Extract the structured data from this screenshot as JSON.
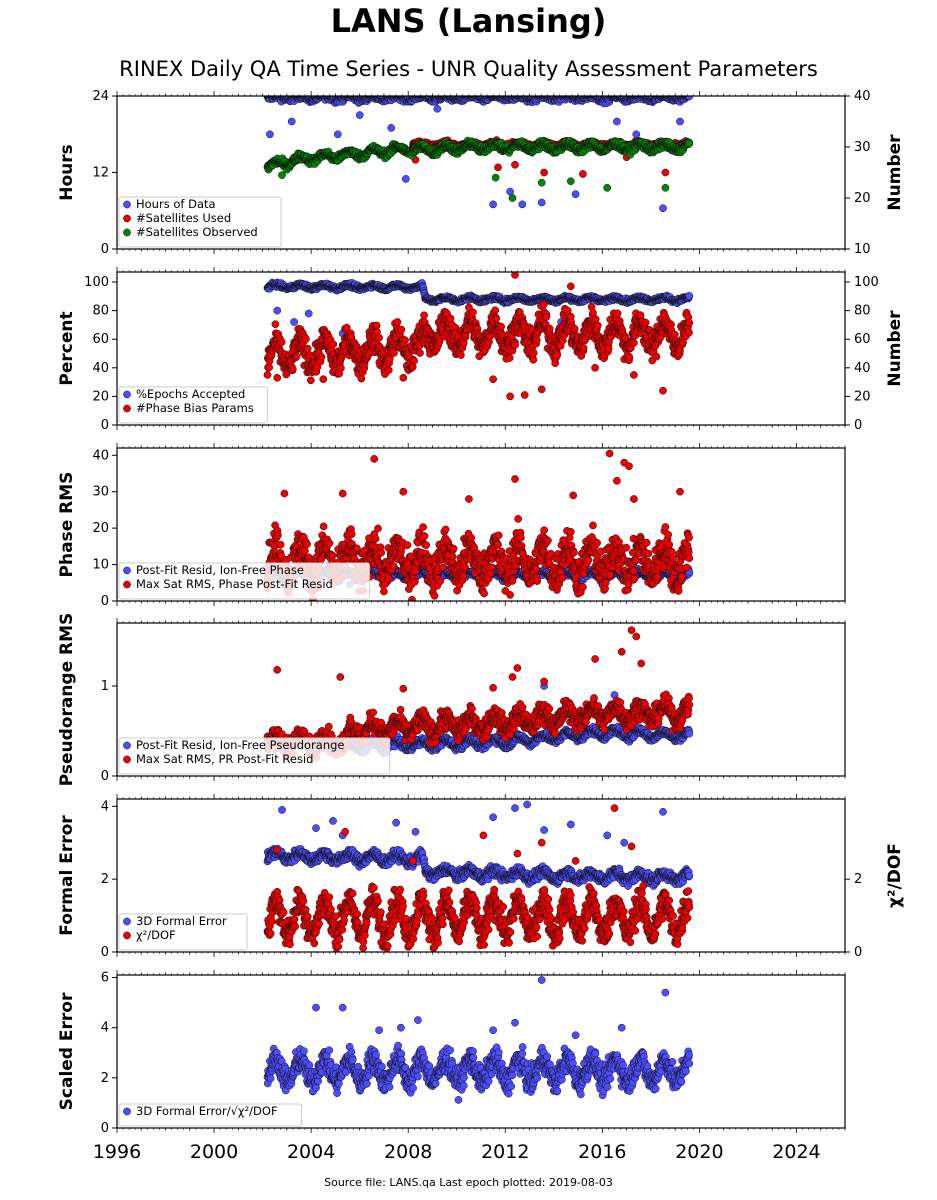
{
  "title": "LANS (Lansing)",
  "subtitle": "RINEX Daily QA Time Series - UNR Quality Assessment Parameters",
  "footer": "Source file: LANS.qa Last epoch plotted: 2019-08-03",
  "colors": {
    "blue": "#4d4dff",
    "red": "#ee0000",
    "green": "#008800"
  },
  "chart_data": [
    {
      "type": "scatter",
      "ylabel": "Hours",
      "ylabel_right": "Number",
      "ylim": [
        0,
        24
      ],
      "ylim_right": [
        10,
        40
      ],
      "yticks": [
        0,
        12,
        24
      ],
      "yticks_right": [
        10,
        20,
        30,
        40
      ],
      "legend": "lower-left",
      "series": [
        {
          "name": "Hours of Data",
          "color": "blue",
          "axis": "left",
          "base": 23.8,
          "amp": 0.3,
          "noise": 0.4,
          "start": 2002.2,
          "end": 2019.6,
          "outliers": [
            [
              2002.3,
              18
            ],
            [
              2003.2,
              20
            ],
            [
              2005.1,
              18
            ],
            [
              2006.0,
              21
            ],
            [
              2007.3,
              19
            ],
            [
              2007.9,
              11
            ],
            [
              2009.2,
              22
            ],
            [
              2011.5,
              7
            ],
            [
              2012.2,
              9
            ],
            [
              2012.7,
              7
            ],
            [
              2013.5,
              7.3
            ],
            [
              2014.9,
              8.6
            ],
            [
              2016.6,
              20
            ],
            [
              2017.4,
              18
            ],
            [
              2018.5,
              6.4
            ],
            [
              2019.2,
              20
            ]
          ]
        },
        {
          "name": "#Satellites Used",
          "color": "red",
          "axis": "right",
          "base": 30.5,
          "amp": 0.3,
          "noise": 0.3,
          "start": 2008.2,
          "end": 2019.6,
          "outliers": [
            [
              2008.3,
              27.5
            ],
            [
              2011.7,
              26
            ],
            [
              2012.4,
              26.5
            ],
            [
              2013.6,
              25
            ],
            [
              2015.2,
              24.7
            ],
            [
              2017.0,
              28
            ],
            [
              2018.6,
              25
            ]
          ]
        },
        {
          "name": "#Satellites Observed",
          "color": "green",
          "axis": "right",
          "base": 28.6,
          "amp": 0.6,
          "noise": 0.5,
          "start": 2002.2,
          "end": 2019.6,
          "trend": [
            [
              2002.2,
              26.2
            ],
            [
              2003.5,
              27.6
            ],
            [
              2005.5,
              28.5
            ],
            [
              2007.6,
              29.5
            ],
            [
              2009.0,
              29.5
            ],
            [
              2010.5,
              30
            ],
            [
              2019.6,
              30
            ]
          ],
          "outliers": [
            [
              2002.8,
              24.5
            ],
            [
              2011.6,
              24
            ],
            [
              2012.3,
              20
            ],
            [
              2013.5,
              23
            ],
            [
              2014.7,
              23.3
            ],
            [
              2016.2,
              22
            ],
            [
              2018.6,
              22
            ]
          ]
        }
      ]
    },
    {
      "type": "scatter",
      "ylabel": "Percent",
      "ylabel_right": "Number",
      "ylim": [
        0,
        107
      ],
      "ylim_right": [
        0,
        107
      ],
      "yticks": [
        0,
        20,
        40,
        60,
        80,
        100
      ],
      "yticks_right": [
        0,
        20,
        40,
        60,
        80,
        100
      ],
      "legend": "lower-left",
      "series": [
        {
          "name": "%Epochs Accepted",
          "color": "blue",
          "axis": "left",
          "base": 96.5,
          "amp": 1.2,
          "noise": 1.0,
          "start": 2002.2,
          "end": 2019.6,
          "trend": [
            [
              2002.2,
              97
            ],
            [
              2008.6,
              96.5
            ],
            [
              2008.7,
              88
            ],
            [
              2019.6,
              88
            ]
          ],
          "outliers": [
            [
              2002.6,
              80
            ],
            [
              2003.3,
              72
            ],
            [
              2003.9,
              78
            ],
            [
              2004.5,
              65
            ],
            [
              2005.3,
              64
            ],
            [
              2008.2,
              60
            ],
            [
              2012.4,
              58
            ],
            [
              2014.3,
              72
            ]
          ]
        },
        {
          "name": "#Phase Bias Params",
          "color": "red",
          "axis": "left",
          "base": 50,
          "amp": 9,
          "noise": 7,
          "start": 2002.2,
          "end": 2019.6,
          "trend": [
            [
              2002.2,
              48
            ],
            [
              2008.6,
              55
            ],
            [
              2008.7,
              64
            ],
            [
              2019.6,
              63
            ]
          ],
          "outliers": [
            [
              2002.6,
              33
            ],
            [
              2004.5,
              32
            ],
            [
              2007.8,
              33
            ],
            [
              2011.5,
              32
            ],
            [
              2012.2,
              20
            ],
            [
              2012.8,
              21
            ],
            [
              2013.5,
              25
            ],
            [
              2012.4,
              105
            ],
            [
              2014.7,
              97
            ],
            [
              2015.7,
              40
            ],
            [
              2017.3,
              35
            ],
            [
              2018.5,
              24
            ]
          ]
        }
      ]
    },
    {
      "type": "scatter",
      "ylabel": "Phase RMS",
      "ylim": [
        0,
        42
      ],
      "yticks": [
        0,
        10,
        20,
        30,
        40
      ],
      "legend": "lower-left",
      "series": [
        {
          "name": "Post-Fit Resid, Ion-Free Phase",
          "color": "blue",
          "axis": "left",
          "base": 7,
          "amp": 1.0,
          "noise": 0.6,
          "start": 2002.2,
          "end": 2019.6,
          "outliers": [
            [
              2003.3,
              5
            ],
            [
              2005.6,
              4.5
            ],
            [
              2011.2,
              5.2
            ]
          ]
        },
        {
          "name": "Max Sat RMS, Phase Post-Fit Resid",
          "color": "red",
          "axis": "left",
          "base": 11,
          "amp": 4,
          "noise": 4,
          "start": 2002.2,
          "end": 2019.6,
          "outliers": [
            [
              2002.9,
              29.5
            ],
            [
              2005.3,
              29.5
            ],
            [
              2006.6,
              39
            ],
            [
              2007.8,
              30
            ],
            [
              2010.5,
              28
            ],
            [
              2012.4,
              33.5
            ],
            [
              2014.8,
              29
            ],
            [
              2016.3,
              40.5
            ],
            [
              2016.6,
              33
            ],
            [
              2016.9,
              38
            ],
            [
              2017.1,
              37
            ],
            [
              2017.3,
              28
            ],
            [
              2019.2,
              30
            ]
          ]
        }
      ]
    },
    {
      "type": "scatter",
      "ylabel": "Pseudorange RMS",
      "ylim": [
        0,
        1.7
      ],
      "yticks": [
        0,
        1
      ],
      "legend": "lower-left",
      "series": [
        {
          "name": "Post-Fit Resid, Ion-Free Pseudorange",
          "color": "blue",
          "axis": "left",
          "base": 0.38,
          "amp": 0.04,
          "noise": 0.03,
          "start": 2002.2,
          "end": 2019.6,
          "trend": [
            [
              2002.2,
              0.42
            ],
            [
              2006.0,
              0.33
            ],
            [
              2012.0,
              0.38
            ],
            [
              2016.0,
              0.48
            ],
            [
              2019.6,
              0.45
            ]
          ],
          "outliers": [
            [
              2013.6,
              1.0
            ],
            [
              2016.5,
              0.9
            ]
          ]
        },
        {
          "name": "Max Sat RMS, PR Post-Fit Resid",
          "color": "red",
          "axis": "left",
          "base": 0.5,
          "amp": 0.08,
          "noise": 0.08,
          "start": 2002.2,
          "end": 2019.6,
          "trend": [
            [
              2002.2,
              0.38
            ],
            [
              2005.5,
              0.38
            ],
            [
              2005.6,
              0.5
            ],
            [
              2012.0,
              0.6
            ],
            [
              2016.0,
              0.7
            ],
            [
              2019.6,
              0.7
            ]
          ],
          "outliers": [
            [
              2002.6,
              1.18
            ],
            [
              2005.2,
              1.1
            ],
            [
              2007.8,
              0.97
            ],
            [
              2011.5,
              0.98
            ],
            [
              2012.3,
              1.1
            ],
            [
              2012.5,
              1.2
            ],
            [
              2013.6,
              1.05
            ],
            [
              2015.7,
              1.3
            ],
            [
              2016.8,
              1.38
            ],
            [
              2017.2,
              1.62
            ],
            [
              2017.4,
              1.55
            ],
            [
              2017.6,
              1.25
            ]
          ]
        }
      ]
    },
    {
      "type": "scatter",
      "ylabel": "Formal Error",
      "ylabel_right": "χ²/DOF",
      "ylim": [
        0,
        4.2
      ],
      "ylim_right": [
        0,
        4.2
      ],
      "yticks": [
        0,
        2,
        4
      ],
      "yticks_right": [
        0,
        2
      ],
      "legend": "lower-left",
      "series": [
        {
          "name": "3D Formal Error",
          "color": "blue",
          "axis": "left",
          "base": 2.6,
          "amp": 0.1,
          "noise": 0.1,
          "start": 2002.2,
          "end": 2019.6,
          "trend": [
            [
              2002.2,
              2.65
            ],
            [
              2008.6,
              2.55
            ],
            [
              2008.7,
              2.2
            ],
            [
              2014.0,
              2.1
            ],
            [
              2019.6,
              2.05
            ]
          ],
          "outliers": [
            [
              2002.8,
              3.9
            ],
            [
              2004.2,
              3.4
            ],
            [
              2004.9,
              3.6
            ],
            [
              2005.3,
              3.2
            ],
            [
              2007.5,
              3.55
            ],
            [
              2008.3,
              3.3
            ],
            [
              2011.5,
              3.7
            ],
            [
              2012.4,
              3.95
            ],
            [
              2012.9,
              4.05
            ],
            [
              2013.6,
              3.35
            ],
            [
              2014.7,
              3.5
            ],
            [
              2016.2,
              3.2
            ],
            [
              2016.9,
              3.0
            ],
            [
              2018.5,
              3.85
            ]
          ]
        },
        {
          "name": "χ²/DOF",
          "color": "red",
          "axis": "right",
          "base": 0.95,
          "amp": 0.45,
          "noise": 0.3,
          "start": 2002.2,
          "end": 2019.6,
          "outliers": [
            [
              2002.6,
              2.8
            ],
            [
              2005.4,
              3.3
            ],
            [
              2008.2,
              2.5
            ],
            [
              2011.1,
              3.2
            ],
            [
              2012.5,
              2.7
            ],
            [
              2013.5,
              3.0
            ],
            [
              2014.9,
              2.5
            ],
            [
              2016.5,
              3.95
            ],
            [
              2017.2,
              2.9
            ]
          ]
        }
      ]
    },
    {
      "type": "scatter",
      "ylabel": "Scaled Error",
      "ylim": [
        0,
        6.1
      ],
      "yticks": [
        0,
        2,
        4,
        6
      ],
      "legend": "lower-left",
      "series": [
        {
          "name": "3D Formal Error/√χ²/DOF",
          "color": "blue",
          "axis": "left",
          "base": 2.3,
          "amp": 0.45,
          "noise": 0.35,
          "start": 2002.2,
          "end": 2019.6,
          "outliers": [
            [
              2004.2,
              4.8
            ],
            [
              2005.3,
              4.8
            ],
            [
              2006.8,
              3.9
            ],
            [
              2007.7,
              4.0
            ],
            [
              2008.4,
              4.3
            ],
            [
              2011.5,
              3.9
            ],
            [
              2012.4,
              4.2
            ],
            [
              2013.5,
              5.9
            ],
            [
              2014.9,
              3.7
            ],
            [
              2016.8,
              4.0
            ],
            [
              2018.6,
              5.4
            ]
          ]
        }
      ]
    }
  ],
  "x_axis": {
    "xlim": [
      1996,
      2026
    ],
    "ticks": [
      "1996",
      "2000",
      "2004",
      "2008",
      "2012",
      "2016",
      "2020",
      "2024"
    ]
  }
}
